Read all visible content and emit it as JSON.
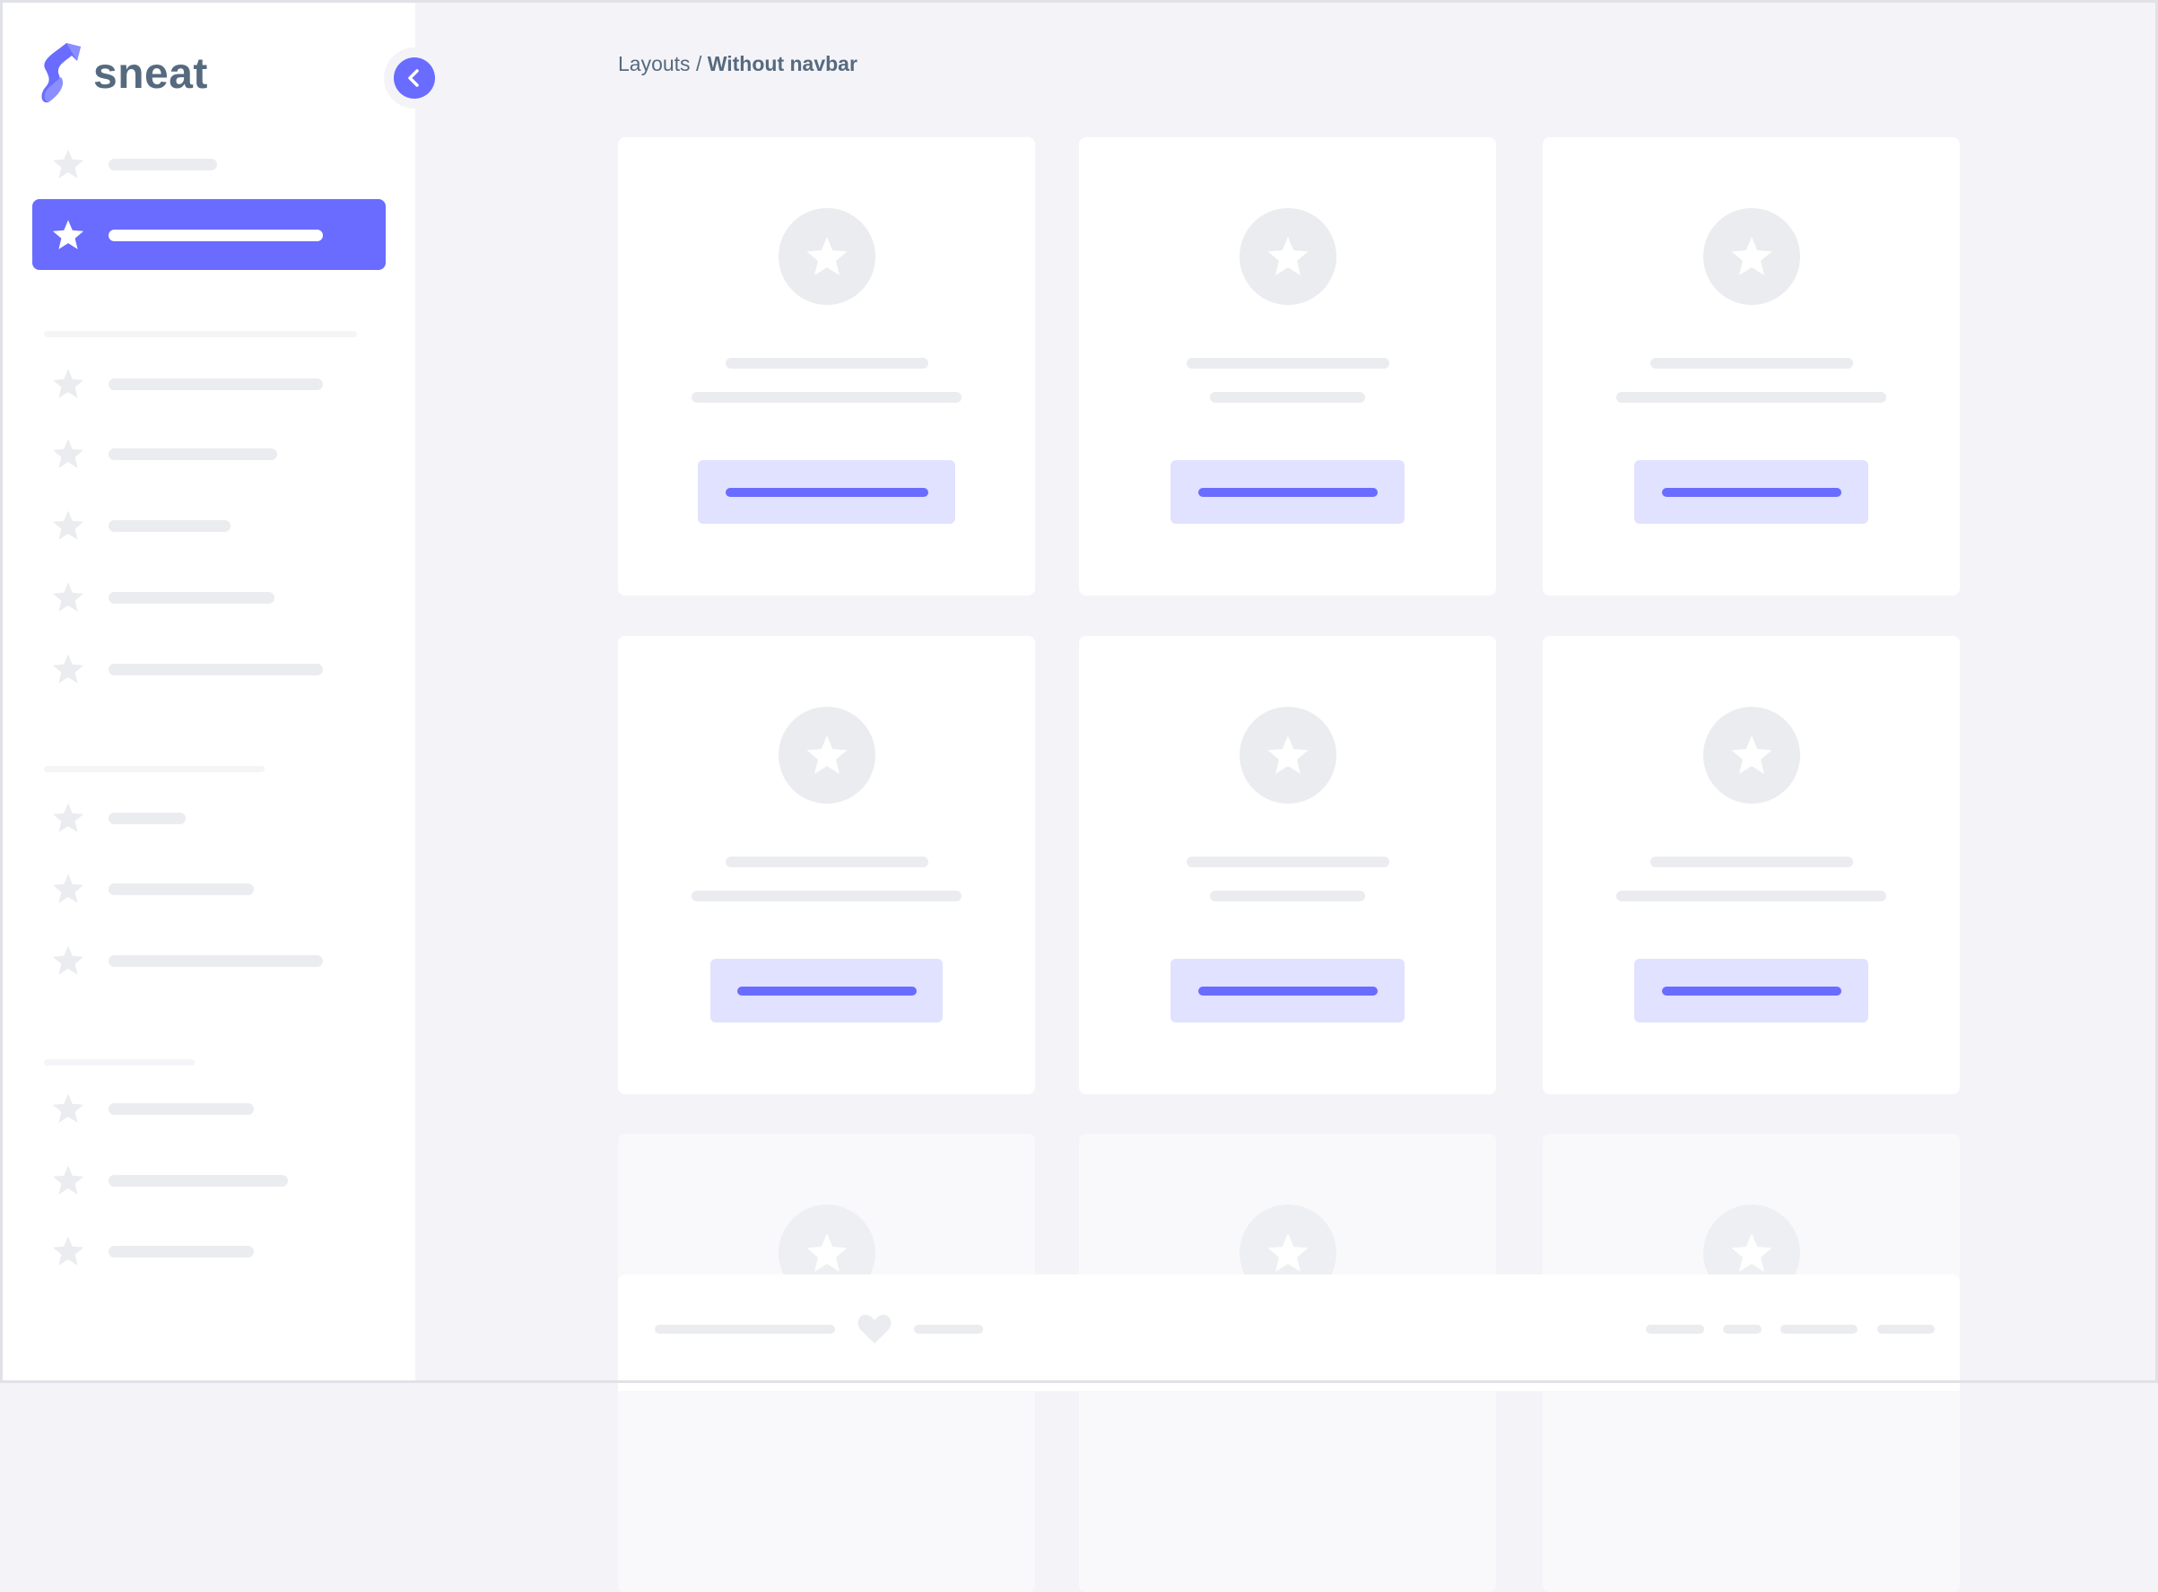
{
  "brand": {
    "name": "sneat",
    "colors": {
      "primary": "#696cff",
      "text": "#566a7f",
      "skeleton": "#ebecef",
      "background": "#f4f4f8"
    }
  },
  "sidebar": {
    "collapse_icon": "chevron-left-icon",
    "item_icon": "star-icon",
    "active_index": 1
  },
  "breadcrumb": {
    "parent": "Layouts",
    "separator": "/",
    "current": "Without navbar"
  },
  "footer": {
    "icon": "heart-icon"
  }
}
